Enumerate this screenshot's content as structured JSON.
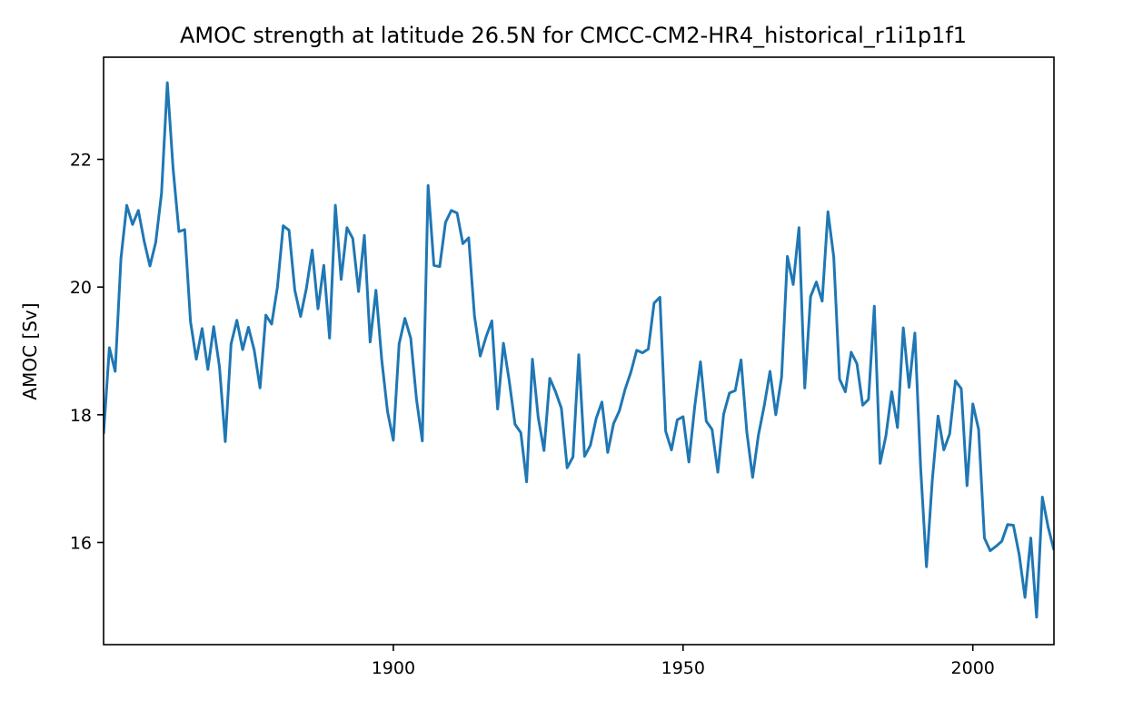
{
  "chart_data": {
    "type": "line",
    "title": "AMOC strength at latitude 26.5N for CMCC-CM2-HR4_historical_r1i1p1f1",
    "xlabel": "",
    "ylabel": "AMOC [Sv]",
    "xlim": [
      1850,
      2014
    ],
    "ylim": [
      14.4,
      23.6
    ],
    "xticks": [
      1900,
      1950,
      2000
    ],
    "yticks": [
      16,
      18,
      20,
      22
    ],
    "grid": false,
    "line_color": "#1f77b4",
    "series": [
      {
        "x": [
          1850,
          1851,
          1852,
          1853,
          1854,
          1855,
          1856,
          1857,
          1858,
          1859,
          1860,
          1861,
          1862,
          1863,
          1864,
          1865,
          1866,
          1867,
          1868,
          1869,
          1870,
          1871,
          1872,
          1873,
          1874,
          1875,
          1876,
          1877,
          1878,
          1879,
          1880,
          1881,
          1882,
          1883,
          1884,
          1885,
          1886,
          1887,
          1888,
          1889,
          1890,
          1891,
          1892,
          1893,
          1894,
          1895,
          1896,
          1897,
          1898,
          1899,
          1900,
          1901,
          1902,
          1903,
          1904,
          1905,
          1906,
          1907,
          1908,
          1909,
          1910,
          1911,
          1912,
          1913,
          1914,
          1915,
          1916,
          1917,
          1918,
          1919,
          1920,
          1921,
          1922,
          1923,
          1924,
          1925,
          1926,
          1927,
          1928,
          1929,
          1930,
          1931,
          1932,
          1933,
          1934,
          1935,
          1936,
          1937,
          1938,
          1939,
          1940,
          1941,
          1942,
          1943,
          1944,
          1945,
          1946,
          1947,
          1948,
          1949,
          1950,
          1951,
          1952,
          1953,
          1954,
          1955,
          1956,
          1957,
          1958,
          1959,
          1960,
          1961,
          1962,
          1963,
          1964,
          1965,
          1966,
          1967,
          1968,
          1969,
          1970,
          1971,
          1972,
          1973,
          1974,
          1975,
          1976,
          1977,
          1978,
          1979,
          1980,
          1981,
          1982,
          1983,
          1984,
          1985,
          1986,
          1987,
          1988,
          1989,
          1990,
          1991,
          1992,
          1993,
          1994,
          1995,
          1996,
          1997,
          1998,
          1999,
          2000,
          2001,
          2002,
          2003,
          2004,
          2005,
          2006,
          2007,
          2008,
          2009,
          2010,
          2011,
          2012,
          2013,
          2014
        ],
        "values": [
          17.7,
          19.05,
          18.68,
          20.45,
          21.28,
          20.98,
          21.2,
          20.72,
          20.33,
          20.7,
          21.47,
          23.2,
          21.85,
          20.87,
          20.9,
          19.46,
          18.87,
          19.35,
          18.71,
          19.38,
          18.75,
          17.58,
          19.11,
          19.48,
          19.02,
          19.37,
          19.01,
          18.42,
          19.56,
          19.42,
          20.0,
          20.96,
          20.89,
          19.95,
          19.54,
          19.98,
          20.58,
          19.66,
          20.34,
          19.2,
          21.28,
          20.12,
          20.93,
          20.76,
          19.93,
          20.81,
          19.14,
          19.95,
          18.86,
          18.05,
          17.6,
          19.11,
          19.51,
          19.2,
          18.24,
          17.59,
          21.59,
          20.34,
          20.32,
          21.01,
          21.2,
          21.16,
          20.68,
          20.77,
          19.55,
          18.92,
          19.22,
          19.47,
          18.09,
          19.12,
          18.53,
          17.85,
          17.72,
          16.95,
          18.87,
          17.96,
          17.44,
          18.57,
          18.36,
          18.1,
          17.17,
          17.34,
          18.94,
          17.35,
          17.52,
          17.94,
          18.2,
          17.41,
          17.86,
          18.06,
          18.4,
          18.67,
          19.01,
          18.97,
          19.03,
          19.75,
          19.84,
          17.74,
          17.45,
          17.92,
          17.97,
          17.26,
          18.12,
          18.83,
          17.9,
          17.77,
          17.1,
          18.01,
          18.34,
          18.38,
          18.86,
          17.73,
          17.02,
          17.68,
          18.14,
          18.68,
          18.0,
          18.59,
          20.48,
          20.04,
          20.93,
          18.42,
          19.85,
          20.08,
          19.78,
          21.18,
          20.47,
          18.56,
          18.36,
          18.98,
          18.8,
          18.15,
          18.24,
          19.7,
          17.24,
          17.67,
          18.36,
          17.8,
          19.36,
          18.43,
          19.28,
          17.16,
          15.62,
          16.97,
          17.98,
          17.45,
          17.7,
          18.53,
          18.41,
          16.89,
          18.17,
          17.77,
          16.07,
          15.87,
          15.94,
          16.02,
          16.28,
          16.27,
          15.81,
          15.14,
          16.07,
          14.83,
          16.71,
          16.24,
          15.88
        ]
      }
    ]
  }
}
